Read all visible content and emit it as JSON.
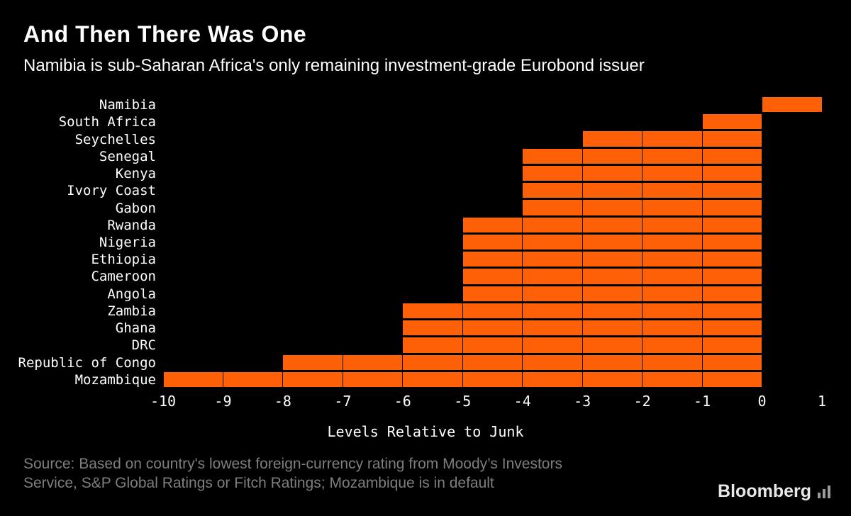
{
  "header": {
    "title": "And Then There Was One",
    "subtitle": "Namibia is sub-Saharan Africa's only remaining investment-grade Eurobond issuer"
  },
  "chart_data": {
    "type": "bar",
    "orientation": "horizontal",
    "title": "And Then There Was One",
    "subtitle": "Namibia is sub-Saharan Africa's only remaining investment-grade Eurobond issuer",
    "categories": [
      "Namibia",
      "South Africa",
      "Seychelles",
      "Senegal",
      "Kenya",
      "Ivory Coast",
      "Gabon",
      "Rwanda",
      "Nigeria",
      "Ethiopia",
      "Cameroon",
      "Angola",
      "Zambia",
      "Ghana",
      "DRC",
      "Republic of Congo",
      "Mozambique"
    ],
    "values": [
      1,
      -1,
      -3,
      -4,
      -4,
      -4,
      -4,
      -5,
      -5,
      -5,
      -5,
      -5,
      -6,
      -6,
      -6,
      -8,
      -10
    ],
    "xlabel": "Levels Relative to Junk",
    "ylabel": "",
    "xlim": [
      -10,
      1
    ],
    "xticks": [
      -10,
      -9,
      -8,
      -7,
      -6,
      -5,
      -4,
      -3,
      -2,
      -1,
      0,
      1
    ],
    "grid": "vertical gridlines drawn black over bars",
    "legend": "none",
    "bar_color": "#fe6007",
    "background_color": "#000000",
    "text_color": "#ffffff"
  },
  "footer": {
    "source_line1": "Source: Based on country's lowest foreign-currency rating from Moody’s Investors",
    "source_line2": "Service, S&P Global Ratings or Fitch Ratings; Mozambique is in default",
    "source_color": "#7e7e7e",
    "brand": "Bloomberg",
    "brand_color": "#e8e8e8",
    "brand_icon": "bloomberg-bars-icon",
    "brand_icon_color": "#9b9b9b"
  }
}
